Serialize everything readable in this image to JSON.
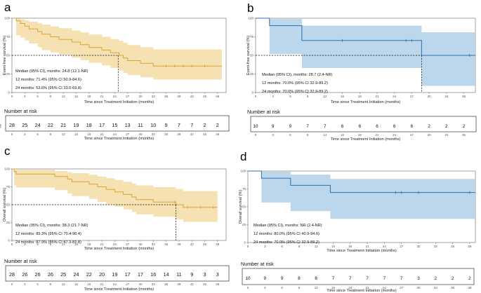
{
  "chart_data": [
    {
      "panel": "a",
      "type": "line",
      "style": "km",
      "color": "#d9a52f",
      "band_color": "#f5dfae",
      "ylabel": "Event-free survival (%)",
      "xlabel": "Time since Treatment Initiation (months)",
      "xlim": [
        0,
        50
      ],
      "ylim": [
        0,
        100
      ],
      "xticks": [
        0,
        3,
        6,
        9,
        12,
        15,
        18,
        21,
        24,
        27,
        30,
        33,
        36,
        39,
        42,
        45,
        48
      ],
      "yticks": [
        0,
        25,
        50,
        75,
        100
      ],
      "median_x": 24.8,
      "annotations": [
        "Median (95% CI), months: 24.8 (12.1-NR)",
        "12 months: 71.4% (95% CI 50.9-84.6)",
        "24 months: 53.6% (95% CI 33.0-69.8)"
      ],
      "km": [
        [
          0,
          100
        ],
        [
          1,
          96.4
        ],
        [
          2,
          92.9
        ],
        [
          3,
          89.3
        ],
        [
          4,
          85.7
        ],
        [
          6,
          82.1
        ],
        [
          7,
          78.6
        ],
        [
          9,
          75
        ],
        [
          11,
          71.4
        ],
        [
          14,
          67.9
        ],
        [
          16,
          64.3
        ],
        [
          18,
          60.7
        ],
        [
          21,
          57.1
        ],
        [
          23,
          53.6
        ],
        [
          25,
          50
        ],
        [
          26,
          46.4
        ],
        [
          27,
          42.9
        ],
        [
          30,
          39.3
        ],
        [
          33,
          35.7
        ],
        [
          49,
          35.7
        ]
      ],
      "upper": [
        [
          0,
          100
        ],
        [
          1,
          99.5
        ],
        [
          2,
          98.5
        ],
        [
          3,
          97
        ],
        [
          4,
          95.5
        ],
        [
          6,
          93.5
        ],
        [
          7,
          91.5
        ],
        [
          9,
          89
        ],
        [
          11,
          86.5
        ],
        [
          14,
          83.5
        ],
        [
          16,
          81
        ],
        [
          18,
          78
        ],
        [
          21,
          75
        ],
        [
          23,
          72
        ],
        [
          25,
          69.5
        ],
        [
          26,
          67
        ],
        [
          27,
          64
        ],
        [
          30,
          61
        ],
        [
          33,
          58
        ],
        [
          49,
          58
        ]
      ],
      "lower": [
        [
          0,
          100
        ],
        [
          1,
          77
        ],
        [
          2,
          74
        ],
        [
          3,
          70
        ],
        [
          4,
          66
        ],
        [
          6,
          61
        ],
        [
          7,
          57
        ],
        [
          9,
          54
        ],
        [
          11,
          50.9
        ],
        [
          14,
          47
        ],
        [
          16,
          43.5
        ],
        [
          18,
          40
        ],
        [
          21,
          36.5
        ],
        [
          23,
          33
        ],
        [
          25,
          29.5
        ],
        [
          26,
          26.5
        ],
        [
          27,
          23.5
        ],
        [
          30,
          20.5
        ],
        [
          33,
          17.5
        ],
        [
          49,
          17.5
        ]
      ],
      "censor": [
        [
          36,
          35.7
        ],
        [
          38,
          35.7
        ],
        [
          40,
          35.7
        ],
        [
          42,
          35.7
        ],
        [
          45,
          35.7
        ]
      ],
      "risk_title": "Number at risk",
      "risk": [
        "28",
        "25",
        "24",
        "22",
        "21",
        "19",
        "18",
        "17",
        "15",
        "13",
        "11",
        "10",
        "9",
        "7",
        "7",
        "2",
        "2"
      ]
    },
    {
      "panel": "b",
      "type": "line",
      "style": "km",
      "color": "#2d6fb0",
      "band_color": "#b8d4eb",
      "ylabel": "Event-free survival (%)",
      "xlabel": "Time since Treatment Initiation (months)",
      "xlim": [
        0,
        38
      ],
      "ylim": [
        0,
        100
      ],
      "xticks": [
        0,
        3,
        6,
        9,
        12,
        15,
        18,
        21,
        24,
        27,
        30,
        33,
        36
      ],
      "yticks": [
        0,
        25,
        50,
        75,
        100
      ],
      "median_x": 28.7,
      "annotations": [
        "Median (95% CI), months: 28.7 (2.4-NR)",
        "12 months: 70.0% (95% CI 32.9-89.2)",
        "24 months: 70.0% (95% CI 32.9-89.2)"
      ],
      "km": [
        [
          0,
          100
        ],
        [
          2.4,
          90
        ],
        [
          8,
          70
        ],
        [
          28.7,
          50
        ],
        [
          38,
          50
        ]
      ],
      "upper": [
        [
          0,
          100
        ],
        [
          2.4,
          99
        ],
        [
          8,
          90
        ],
        [
          28.7,
          81
        ],
        [
          38,
          81
        ]
      ],
      "lower": [
        [
          0,
          100
        ],
        [
          2.4,
          52
        ],
        [
          8,
          33
        ],
        [
          28.7,
          9
        ],
        [
          38,
          9
        ]
      ],
      "censor": [
        [
          15,
          70
        ],
        [
          26,
          70
        ],
        [
          27,
          70
        ],
        [
          37,
          50
        ]
      ],
      "risk_title": "Number at risk",
      "risk": [
        "10",
        "9",
        "9",
        "7",
        "7",
        "6",
        "6",
        "6",
        "6",
        "6",
        "2",
        "2",
        "2",
        "2"
      ]
    },
    {
      "panel": "c",
      "type": "line",
      "style": "km",
      "color": "#d9a52f",
      "band_color": "#f5dfae",
      "ylabel": "Overall survival (%)",
      "xlabel": "Time since Treatment Initiation (months)",
      "xlim": [
        0,
        50
      ],
      "ylim": [
        0,
        100
      ],
      "xticks": [
        0,
        3,
        6,
        9,
        12,
        15,
        18,
        21,
        24,
        27,
        30,
        33,
        36,
        39,
        42,
        45,
        48
      ],
      "yticks": [
        0,
        25,
        50,
        75,
        100
      ],
      "median_x": 38.3,
      "annotations": [
        "Median (95% CI), months: 38.3 (21.7-NR)",
        "12 months: 89.3% (95% CI 70.4-96.4)",
        "24 months: 67.9% (95% CI 47.3-81.8)"
      ],
      "km": [
        [
          0,
          100
        ],
        [
          0.5,
          96.4
        ],
        [
          1,
          92.9
        ],
        [
          10,
          89.3
        ],
        [
          13,
          85.7
        ],
        [
          14,
          82.1
        ],
        [
          18,
          78.6
        ],
        [
          20,
          75
        ],
        [
          22,
          71.4
        ],
        [
          24,
          67.9
        ],
        [
          26,
          64.3
        ],
        [
          28,
          60.7
        ],
        [
          29,
          57.1
        ],
        [
          33,
          53.6
        ],
        [
          37,
          53.6
        ],
        [
          38.3,
          50
        ],
        [
          40,
          46.4
        ],
        [
          48,
          46.4
        ]
      ],
      "upper": [
        [
          0,
          100
        ],
        [
          0.5,
          100
        ],
        [
          1,
          99
        ],
        [
          10,
          97
        ],
        [
          13,
          95.5
        ],
        [
          14,
          94
        ],
        [
          18,
          92
        ],
        [
          20,
          89.5
        ],
        [
          22,
          87
        ],
        [
          24,
          84.5
        ],
        [
          26,
          82
        ],
        [
          28,
          79.5
        ],
        [
          29,
          77
        ],
        [
          33,
          74.5
        ],
        [
          37,
          74.5
        ],
        [
          38.3,
          72
        ],
        [
          40,
          69
        ],
        [
          48,
          69
        ]
      ],
      "lower": [
        [
          0,
          100
        ],
        [
          0.5,
          77.2
        ],
        [
          1,
          74
        ],
        [
          10,
          70.4
        ],
        [
          13,
          66
        ],
        [
          14,
          62
        ],
        [
          18,
          58
        ],
        [
          20,
          54
        ],
        [
          22,
          50.5
        ],
        [
          24,
          47.3
        ],
        [
          26,
          43.5
        ],
        [
          28,
          40
        ],
        [
          29,
          36.5
        ],
        [
          33,
          33
        ],
        [
          37,
          33
        ],
        [
          38.3,
          29.5
        ],
        [
          40,
          26
        ],
        [
          48,
          26
        ]
      ],
      "censor": [
        [
          38,
          53.6
        ],
        [
          41,
          46.4
        ],
        [
          44,
          46.4
        ],
        [
          47,
          46.4
        ]
      ],
      "risk_title": "Number at risk",
      "risk": [
        "28",
        "26",
        "26",
        "26",
        "25",
        "24",
        "22",
        "20",
        "19",
        "17",
        "17",
        "16",
        "14",
        "11",
        "9",
        "3",
        "3"
      ]
    },
    {
      "panel": "d",
      "type": "line",
      "style": "km",
      "color": "#2d6fb0",
      "band_color": "#b8d4eb",
      "ylabel": "Overall survival (%)",
      "xlabel": "Time since Treatment Initiation (months)",
      "xlim": [
        0,
        40
      ],
      "ylim": [
        0,
        100
      ],
      "xticks": [
        0,
        3,
        6,
        9,
        12,
        15,
        18,
        21,
        24,
        27,
        30,
        33,
        36,
        39
      ],
      "yticks": [
        0,
        25,
        50,
        75,
        100
      ],
      "median_x": null,
      "annotations": [
        "Median (95% CI), months: NR (2.4-NR)",
        "12 months: 80.0% (95% CI 40.9-94.6)",
        "24 months: 70.0% (95% CI 32.9-89.2)"
      ],
      "km": [
        [
          0,
          100
        ],
        [
          2.4,
          90
        ],
        [
          7.5,
          80
        ],
        [
          14.5,
          70
        ],
        [
          40,
          70
        ]
      ],
      "upper": [
        [
          0,
          100
        ],
        [
          2.4,
          99
        ],
        [
          7.5,
          95
        ],
        [
          14.5,
          89
        ],
        [
          40,
          89
        ]
      ],
      "lower": [
        [
          0,
          100
        ],
        [
          2.4,
          56
        ],
        [
          7.5,
          44
        ],
        [
          14.5,
          33
        ],
        [
          40,
          33
        ]
      ],
      "censor": [
        [
          26,
          70
        ],
        [
          27,
          70
        ],
        [
          30,
          70
        ],
        [
          39,
          70
        ]
      ],
      "risk_title": "Number at risk",
      "risk": [
        "10",
        "9",
        "9",
        "8",
        "8",
        "7",
        "7",
        "7",
        "7",
        "7",
        "3",
        "2",
        "2",
        "2"
      ]
    }
  ]
}
